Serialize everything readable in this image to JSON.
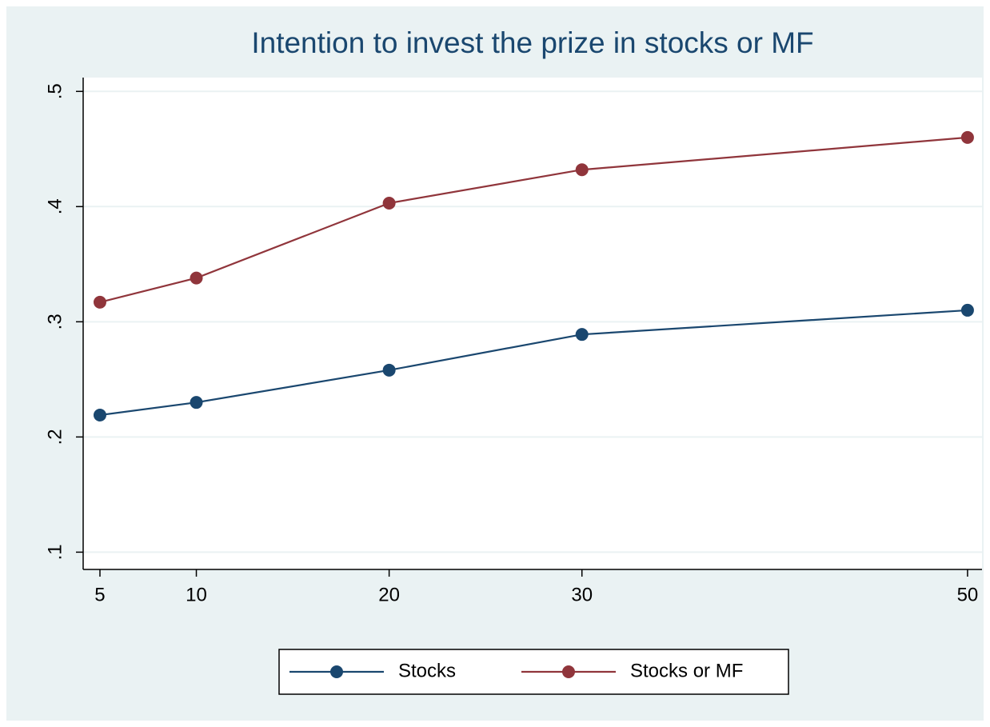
{
  "chart_data": {
    "type": "line",
    "title": "Intention to invest the prize in stocks or MF",
    "x": [
      5,
      10,
      20,
      30,
      50
    ],
    "series": [
      {
        "name": "Stocks",
        "color": "#1a476f",
        "values": [
          0.219,
          0.23,
          0.258,
          0.289,
          0.31
        ]
      },
      {
        "name": "Stocks or MF",
        "color": "#90353b",
        "values": [
          0.317,
          0.338,
          0.403,
          0.432,
          0.46
        ]
      }
    ],
    "xlim": [
      4.13,
      50.75
    ],
    "xticks": [
      5,
      10,
      20,
      30,
      50
    ],
    "ylim": [
      0.085,
      0.512
    ],
    "yticks": [
      {
        "value": 0.1,
        "label": ".1"
      },
      {
        "value": 0.2,
        "label": ".2"
      },
      {
        "value": 0.3,
        "label": ".3"
      },
      {
        "value": 0.4,
        "label": ".4"
      },
      {
        "value": 0.5,
        "label": ".5"
      }
    ],
    "grid": true,
    "legend": "bottom"
  }
}
